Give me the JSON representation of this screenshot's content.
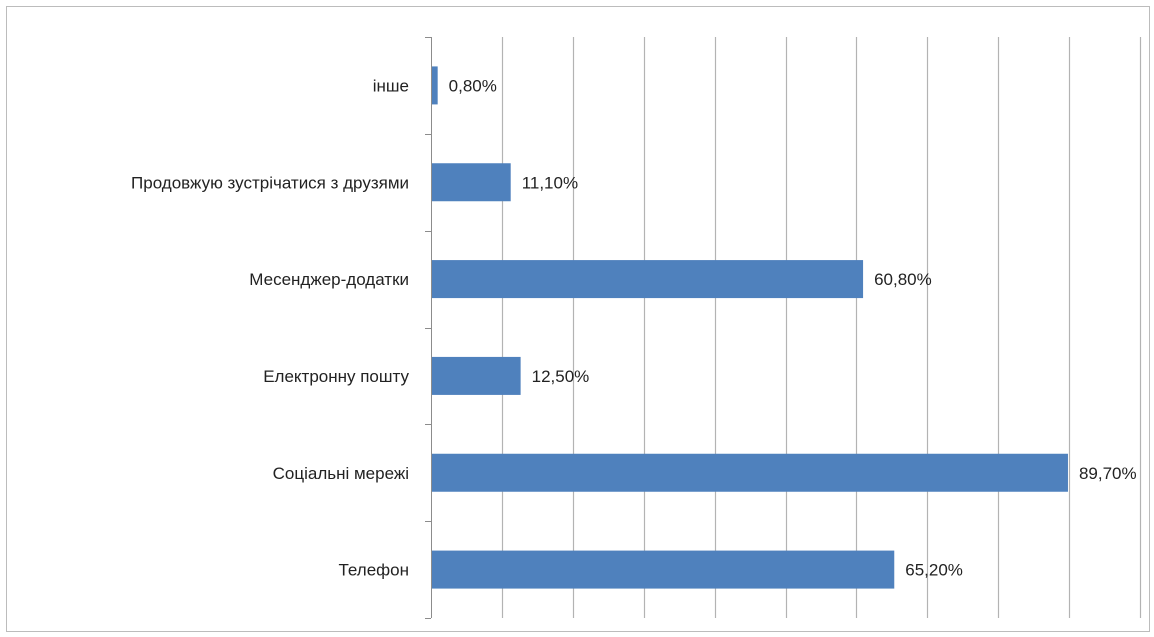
{
  "chart_data": {
    "type": "bar",
    "orientation": "horizontal",
    "categories": [
      "інше",
      "Продовжую зустрічатися з друзями",
      "Месенджер-додатки",
      "Електронну пошту",
      "Соціальні мережі",
      "Телефон"
    ],
    "values": [
      0.8,
      11.1,
      60.8,
      12.5,
      89.7,
      65.2
    ],
    "data_labels": [
      "0,80%",
      "11,10%",
      "60,80%",
      "12,50%",
      "89,70%",
      "65,20%"
    ],
    "xlim": [
      0,
      100
    ],
    "x_grid_step": 10,
    "grid": true,
    "legend": "none",
    "bar_color": "#4F81BD",
    "grid_color": "#B3B3B3"
  }
}
